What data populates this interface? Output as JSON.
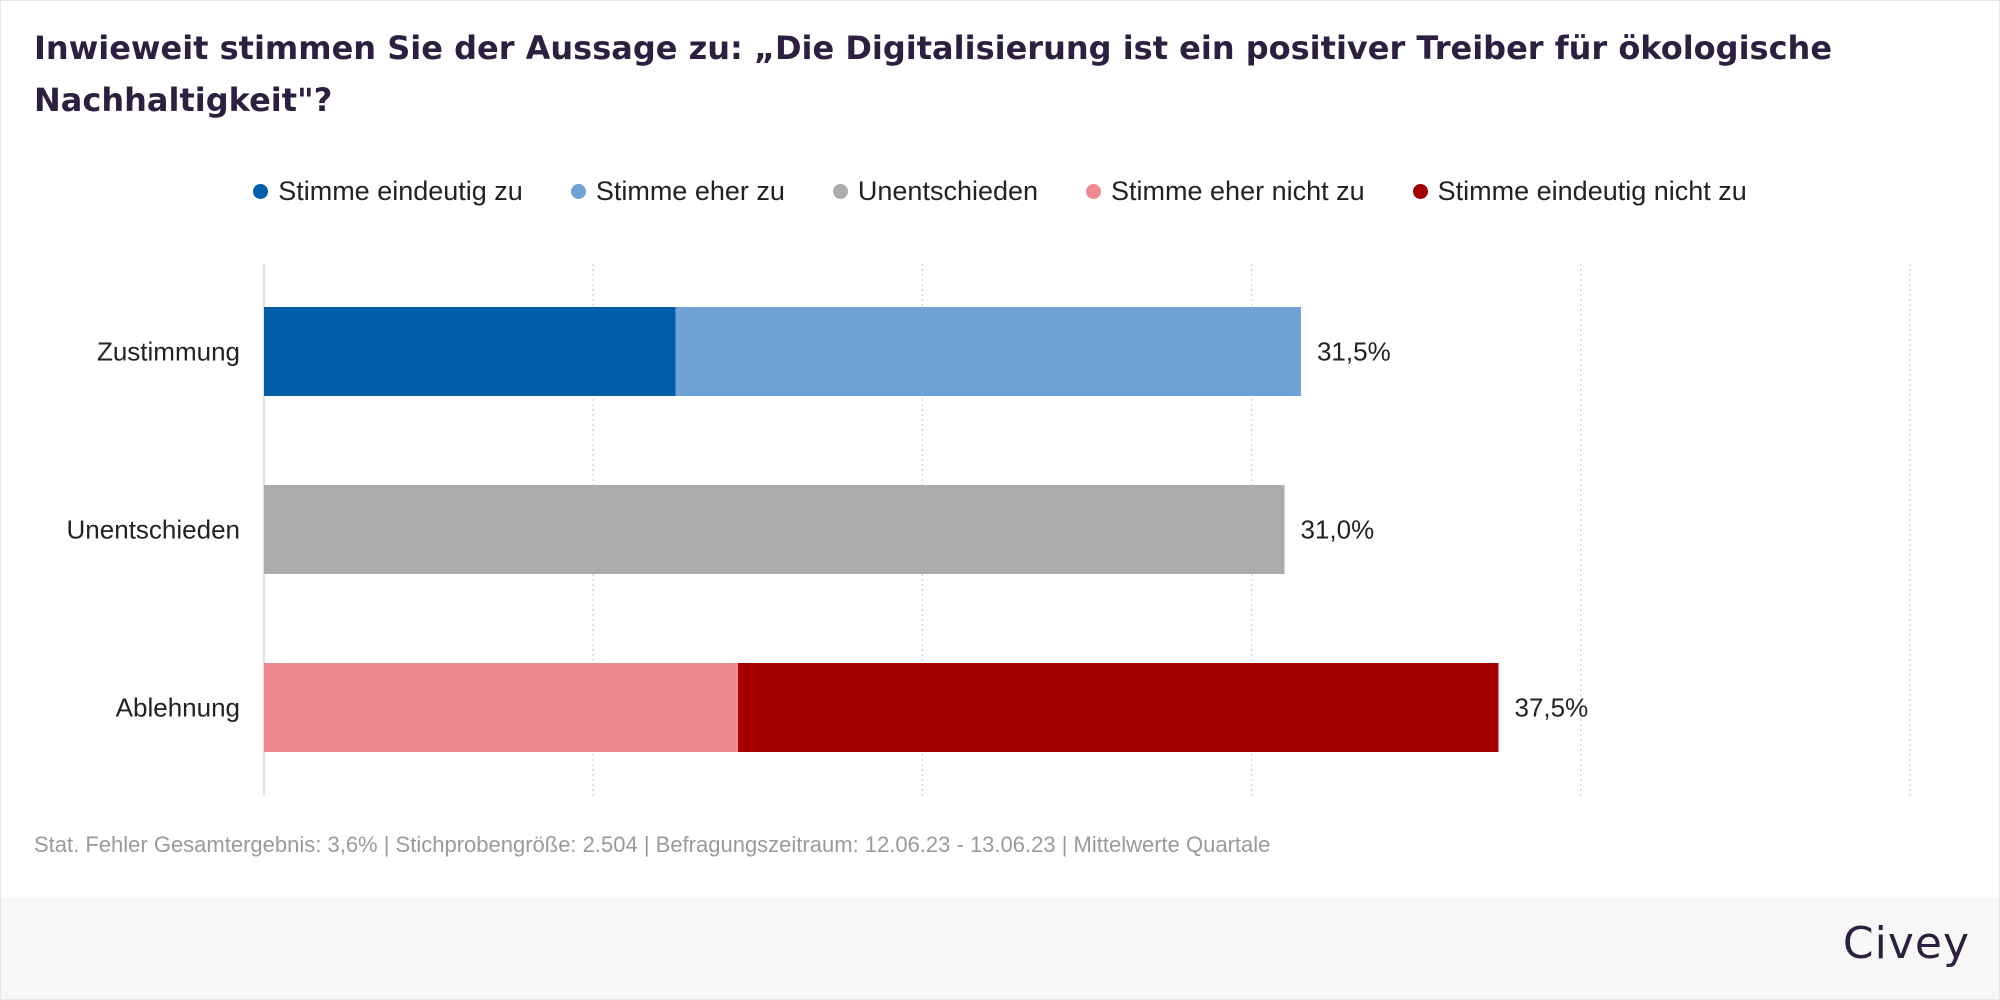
{
  "title": "Inwieweit stimmen Sie der Aussage zu: „Die Digitalisierung ist ein positiver Treiber für ökologische Nachhaltigkeit\"?",
  "footer_note": "Stat. Fehler Gesamtergebnis: 3,6% | Stichprobengröße: 2.504 | Befragungszeitraum: 12.06.23 - 13.06.23 | Mittelwerte Quartale",
  "brand": "Civey",
  "chart_data": {
    "type": "bar",
    "orientation": "horizontal",
    "stacked": true,
    "title": "Inwieweit stimmen Sie der Aussage zu: „Die Digitalisierung ist ein positiver Treiber für ökologische Nachhaltigkeit\"?",
    "categories": [
      "Zustimmung",
      "Unentschieden",
      "Ablehnung"
    ],
    "series": [
      {
        "name": "Stimme eindeutig zu",
        "color": "#005ea8",
        "values": [
          12.5,
          0,
          0
        ]
      },
      {
        "name": "Stimme eher zu",
        "color": "#70a1d7",
        "values": [
          19.0,
          0,
          0
        ]
      },
      {
        "name": "Unentschieden",
        "color": "#acacac",
        "values": [
          0,
          31.0,
          0
        ]
      },
      {
        "name": "Stimme eher nicht zu",
        "color": "#f08a91",
        "values": [
          0,
          0,
          14.4
        ]
      },
      {
        "name": "Stimme eindeutig nicht zu",
        "color": "#a50000",
        "values": [
          0,
          0,
          23.1
        ]
      }
    ],
    "stack_order": [
      [
        "Stimme eindeutig zu",
        "Stimme eher zu"
      ],
      [
        "Unentschieden"
      ],
      [
        "Stimme eher nicht zu",
        "Stimme eindeutig nicht zu"
      ]
    ],
    "totals": [
      31.5,
      31.0,
      37.5
    ],
    "total_labels": [
      "31,5%",
      "31,0%",
      "37,5%"
    ],
    "xlim": [
      0,
      50
    ],
    "grid": true,
    "legend_position": "top-center"
  }
}
